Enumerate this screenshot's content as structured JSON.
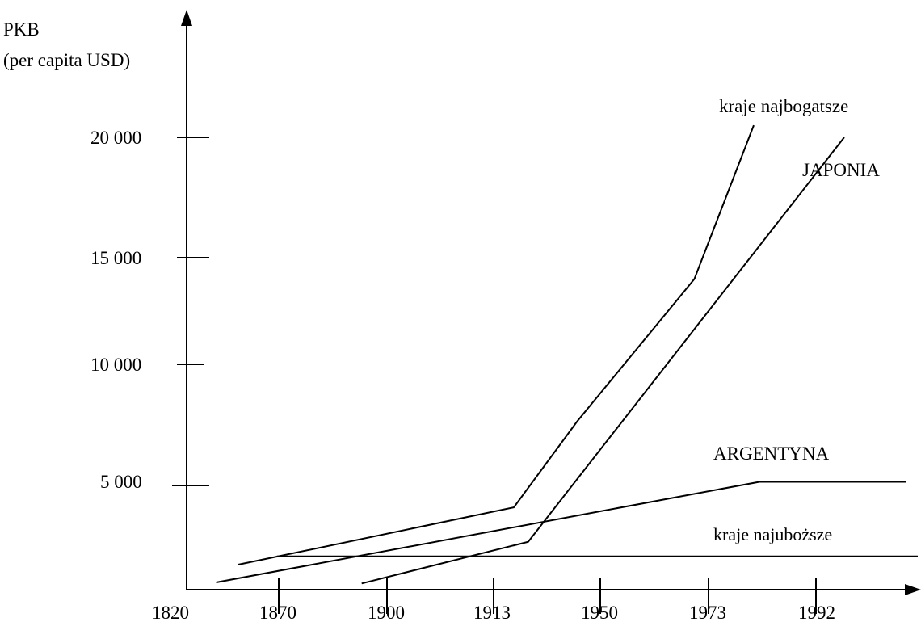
{
  "chart_data": {
    "type": "line",
    "title": "",
    "ylabel_line1": "PKB",
    "ylabel_line2": "(per capita USD)",
    "xlabel": "",
    "x_tick_labels": [
      "1820",
      "1870",
      "1900",
      "1913",
      "1950",
      "1973",
      "1992"
    ],
    "y_ticks": [
      {
        "label": "5 000",
        "value": 5000
      },
      {
        "label": "10 000",
        "value": 10000
      },
      {
        "label": "15 000",
        "value": 15000
      },
      {
        "label": "20 000",
        "value": 20000
      }
    ],
    "grid": false,
    "series": [
      {
        "name": "kraje najbogatsze",
        "points": [
          {
            "x": 1848,
            "y": 1200
          },
          {
            "x": 1920,
            "y": 3950
          },
          {
            "x": 1942,
            "y": 7650
          },
          {
            "x": 1970,
            "y": 14000
          },
          {
            "x": 1981,
            "y": 20500
          }
        ]
      },
      {
        "name": "JAPONIA",
        "points": [
          {
            "x": 1893,
            "y": 300
          },
          {
            "x": 1925,
            "y": 2300
          },
          {
            "x": 1997,
            "y": 20000
          }
        ]
      },
      {
        "name": "ARGENTYNA",
        "points": [
          {
            "x": 1836,
            "y": 350
          },
          {
            "x": 1982,
            "y": 5150
          },
          {
            "x": 2008,
            "y": 5150
          }
        ]
      },
      {
        "name": "kraje najuboższe",
        "points": [
          {
            "x": 1869,
            "y": 1600
          },
          {
            "x": 2010,
            "y": 1600
          }
        ]
      }
    ]
  }
}
